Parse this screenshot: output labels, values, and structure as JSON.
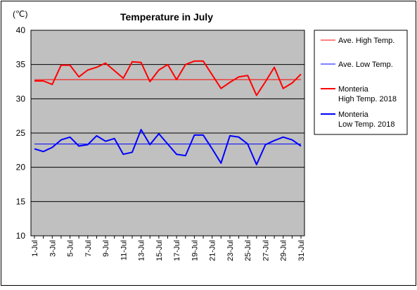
{
  "chart_data": {
    "type": "line",
    "title": "Temperature in July",
    "unit_label": "(℃)",
    "ylim": [
      10,
      40
    ],
    "y_ticks": [
      10,
      15,
      20,
      25,
      30,
      35,
      40
    ],
    "x": [
      1,
      2,
      3,
      4,
      5,
      6,
      7,
      8,
      9,
      10,
      11,
      12,
      13,
      14,
      15,
      16,
      17,
      18,
      19,
      20,
      21,
      22,
      23,
      24,
      25,
      26,
      27,
      28,
      29,
      30,
      31
    ],
    "x_tick_labels": [
      "1-Jul",
      "3-Jul",
      "5-Jul",
      "7-Jul",
      "9-Jul",
      "11-Jul",
      "13-Jul",
      "15-Jul",
      "17-Jul",
      "19-Jul",
      "21-Jul",
      "23-Jul",
      "25-Jul",
      "27-Jul",
      "29-Jul",
      "31-Jul"
    ],
    "grid": true,
    "legend_position": "right",
    "series": [
      {
        "key": "ave_high",
        "name": "Ave. High Temp.",
        "color": "#ff0000",
        "style": "thin",
        "values": [
          32.8,
          32.8,
          32.8,
          32.8,
          32.8,
          32.8,
          32.8,
          32.8,
          32.8,
          32.8,
          32.8,
          32.8,
          32.8,
          32.8,
          32.8,
          32.8,
          32.8,
          32.8,
          32.8,
          32.8,
          32.8,
          32.8,
          32.8,
          32.8,
          32.8,
          32.8,
          32.8,
          32.8,
          32.8,
          32.8,
          32.8
        ]
      },
      {
        "key": "ave_low",
        "name": "Ave. Low Temp.",
        "color": "#0000ff",
        "style": "thin",
        "values": [
          23.4,
          23.4,
          23.4,
          23.4,
          23.4,
          23.4,
          23.4,
          23.4,
          23.4,
          23.4,
          23.4,
          23.4,
          23.4,
          23.4,
          23.4,
          23.4,
          23.4,
          23.4,
          23.4,
          23.4,
          23.4,
          23.4,
          23.4,
          23.4,
          23.4,
          23.4,
          23.4,
          23.4,
          23.4,
          23.4,
          23.4
        ]
      },
      {
        "key": "high_2018",
        "name_line1": "Monteria",
        "name_line2": "High Temp. 2018",
        "color": "#ff0000",
        "style": "thick",
        "values": [
          32.6,
          32.6,
          32.1,
          34.9,
          34.9,
          33.2,
          34.2,
          34.6,
          35.2,
          34.1,
          33.0,
          35.4,
          35.3,
          32.5,
          34.2,
          35.0,
          32.8,
          35.0,
          35.5,
          35.5,
          33.5,
          31.5,
          32.4,
          33.2,
          33.4,
          30.5,
          32.5,
          34.6,
          31.5,
          32.3,
          33.6
        ]
      },
      {
        "key": "low_2018",
        "name_line1": "Monteria",
        "name_line2": "Low Temp. 2018",
        "color": "#0000ff",
        "style": "thick",
        "values": [
          22.7,
          22.3,
          22.9,
          24.0,
          24.4,
          23.1,
          23.3,
          24.6,
          23.8,
          24.2,
          21.9,
          22.2,
          25.5,
          23.3,
          24.9,
          23.4,
          21.9,
          21.7,
          24.7,
          24.7,
          22.7,
          20.6,
          24.6,
          24.4,
          23.4,
          20.4,
          23.3,
          23.9,
          24.4,
          24.0,
          23.1
        ]
      }
    ]
  }
}
